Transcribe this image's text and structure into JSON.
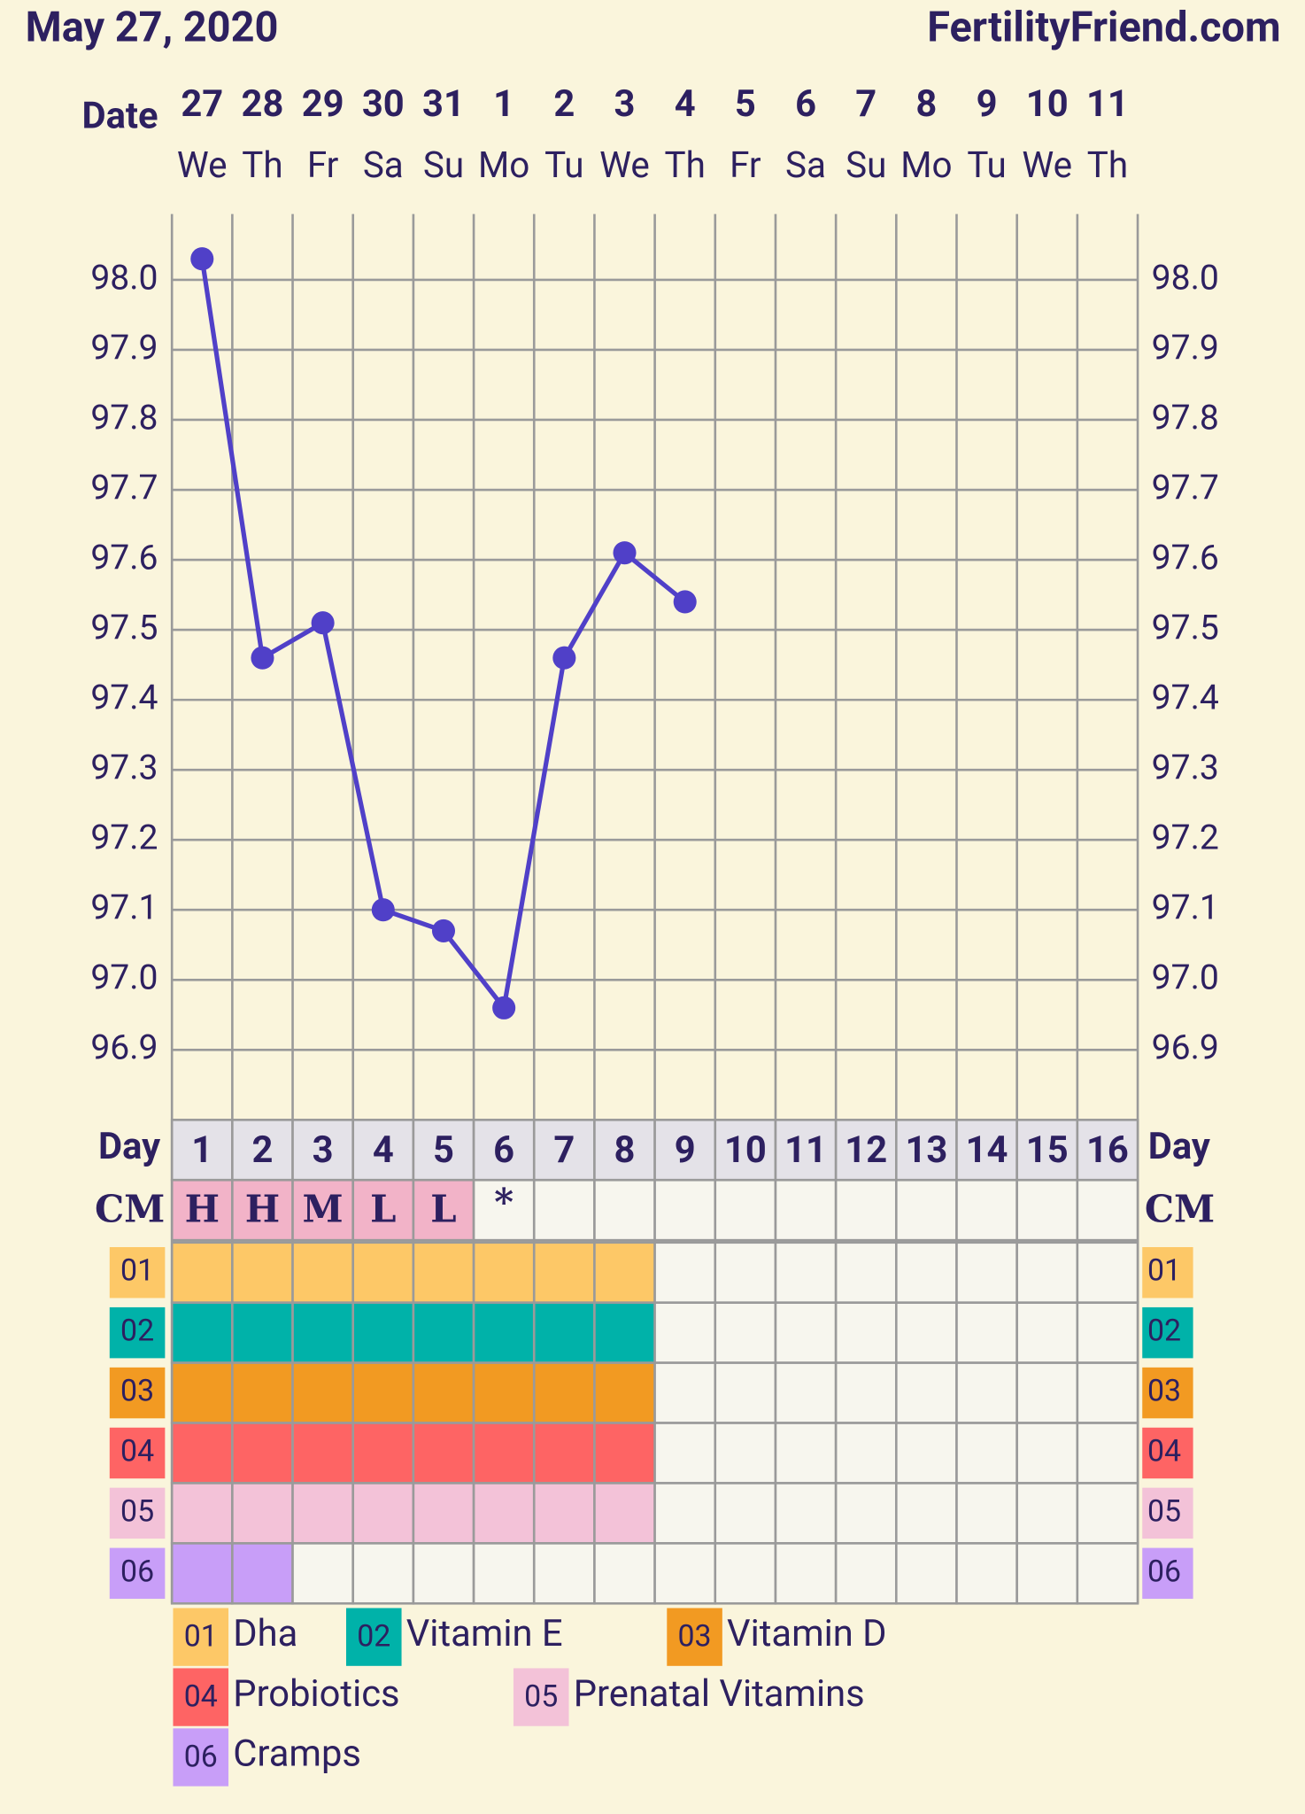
{
  "chart_data": {
    "type": "line",
    "title": "May 27, 2020",
    "site": "FertilityFriend.com",
    "date_label": "Date",
    "categories": [
      "27",
      "28",
      "29",
      "30",
      "31",
      "1",
      "2",
      "3",
      "4",
      "5",
      "6",
      "7",
      "8",
      "9",
      "10",
      "11"
    ],
    "weekdays": [
      "We",
      "Th",
      "Fr",
      "Sa",
      "Su",
      "Mo",
      "Tu",
      "We",
      "Th",
      "Fr",
      "Sa",
      "Su",
      "Mo",
      "Tu",
      "We",
      "Th"
    ],
    "values": [
      98.03,
      97.46,
      97.51,
      97.1,
      97.07,
      96.96,
      97.46,
      97.61,
      97.54,
      null,
      null,
      null,
      null,
      null,
      null,
      null
    ],
    "color": "#5040c8",
    "ylim": [
      96.8,
      98.094
    ],
    "yticks": [
      {
        "value": 96.9,
        "label": "96.9"
      },
      {
        "value": 97.0,
        "label": "97.0"
      },
      {
        "value": 97.1,
        "label": "97.1"
      },
      {
        "value": 97.2,
        "label": "97.2"
      },
      {
        "value": 97.3,
        "label": "97.3"
      },
      {
        "value": 97.4,
        "label": "97.4"
      },
      {
        "value": 97.5,
        "label": "97.5"
      },
      {
        "value": 97.6,
        "label": "97.6"
      },
      {
        "value": 97.7,
        "label": "97.7"
      },
      {
        "value": 97.8,
        "label": "97.8"
      },
      {
        "value": 97.9,
        "label": "97.9"
      },
      {
        "value": 98.0,
        "label": "98.0"
      }
    ],
    "grid": true,
    "day_label": "Day",
    "days": [
      1,
      2,
      3,
      4,
      5,
      6,
      7,
      8,
      9,
      10,
      11,
      12,
      13,
      14,
      15,
      16
    ],
    "cm_label": "CM",
    "cm": [
      "H",
      "H",
      "M",
      "L",
      "L",
      "*",
      null,
      null,
      null,
      null,
      null,
      null,
      null,
      null,
      null,
      null
    ],
    "cm_color": "#f2b3c8",
    "rows": [
      {
        "code": "01",
        "name": "Dha",
        "color": "#fdc867",
        "marked": [
          true,
          true,
          true,
          true,
          true,
          true,
          true,
          true,
          false,
          false,
          false,
          false,
          false,
          false,
          false,
          false
        ]
      },
      {
        "code": "02",
        "name": "Vitamin E",
        "color": "#00b2a9",
        "marked": [
          true,
          true,
          true,
          true,
          true,
          true,
          true,
          true,
          false,
          false,
          false,
          false,
          false,
          false,
          false,
          false
        ]
      },
      {
        "code": "03",
        "name": "Vitamin D",
        "color": "#f29a22",
        "marked": [
          true,
          true,
          true,
          true,
          true,
          true,
          true,
          true,
          false,
          false,
          false,
          false,
          false,
          false,
          false,
          false
        ]
      },
      {
        "code": "04",
        "name": "Probiotics",
        "color": "#fe6464",
        "marked": [
          true,
          true,
          true,
          true,
          true,
          true,
          true,
          true,
          false,
          false,
          false,
          false,
          false,
          false,
          false,
          false
        ]
      },
      {
        "code": "05",
        "name": "Prenatal Vitamins",
        "color": "#f3c2d8",
        "marked": [
          true,
          true,
          true,
          true,
          true,
          true,
          true,
          true,
          false,
          false,
          false,
          false,
          false,
          false,
          false,
          false
        ]
      },
      {
        "code": "06",
        "name": "Cramps",
        "color": "#c89ef8",
        "marked": [
          true,
          true,
          false,
          false,
          false,
          false,
          false,
          false,
          false,
          false,
          false,
          false,
          false,
          false,
          false,
          false
        ]
      }
    ]
  }
}
